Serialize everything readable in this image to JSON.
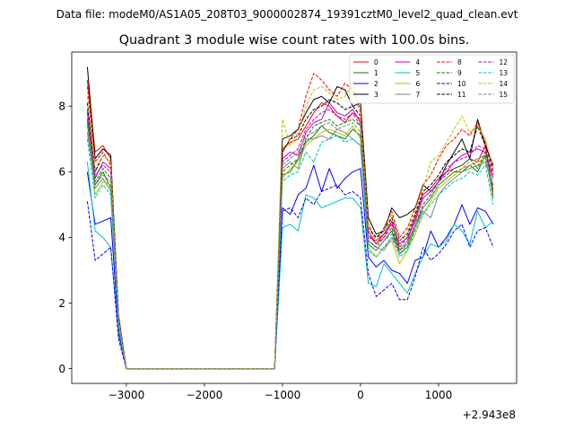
{
  "suptitle": "Data file: modeM0/AS1A05_208T03_9000002874_19391cztM0_level2_quad_clean.evt",
  "chart_data": {
    "type": "line",
    "title": "Quadrant 3 module wise count rates with 100.0s bins.",
    "xlabel": "",
    "ylabel": "",
    "offset_text": "+2.943e8",
    "xlim": [
      -3700,
      2000
    ],
    "ylim": [
      -0.45,
      9.65
    ],
    "xticks": [
      -3000,
      -2000,
      -1000,
      0,
      1000
    ],
    "xtick_labels": [
      "−3000",
      "−2000",
      "−1000",
      "0",
      "1000"
    ],
    "yticks": [
      0,
      2,
      4,
      6,
      8
    ],
    "ytick_labels": [
      "0",
      "2",
      "4",
      "6",
      "8"
    ],
    "grid": false,
    "legend_placement": "upper-right",
    "x": [
      -3500,
      -3400,
      -3300,
      -3200,
      -3100,
      -3000,
      -2900,
      -2800,
      -2700,
      -2600,
      -2500,
      -2400,
      -2300,
      -2200,
      -2100,
      -2000,
      -1900,
      -1800,
      -1700,
      -1600,
      -1500,
      -1400,
      -1300,
      -1200,
      -1100,
      -1000,
      -900,
      -800,
      -700,
      -600,
      -500,
      -400,
      -300,
      -200,
      -100,
      0,
      100,
      200,
      300,
      400,
      500,
      600,
      700,
      800,
      900,
      1000,
      1100,
      1200,
      1300,
      1400,
      1500,
      1600,
      1700
    ],
    "series": [
      {
        "name": "0",
        "color": "#ff0000",
        "dash": "solid",
        "values": [
          8.8,
          6.6,
          6.8,
          6.4,
          1.6,
          0,
          0,
          0,
          0,
          0,
          0,
          0,
          0,
          0,
          0,
          0,
          0,
          0,
          0,
          0,
          0,
          0,
          0,
          0,
          0,
          6.7,
          6.9,
          7.0,
          7.4,
          7.8,
          8.1,
          8.0,
          7.7,
          7.5,
          7.8,
          7.6,
          4.2,
          3.8,
          4.1,
          4.5,
          3.6,
          3.9,
          4.6,
          5.3,
          5.5,
          5.8,
          6.0,
          6.1,
          6.2,
          6.4,
          6.3,
          6.8,
          5.4
        ]
      },
      {
        "name": "1",
        "color": "#008000",
        "dash": "solid",
        "values": [
          7.5,
          5.6,
          6.0,
          5.5,
          1.4,
          0,
          0,
          0,
          0,
          0,
          0,
          0,
          0,
          0,
          0,
          0,
          0,
          0,
          0,
          0,
          0,
          0,
          0,
          0,
          0,
          5.9,
          6.0,
          6.4,
          6.9,
          7.1,
          7.4,
          7.2,
          7.1,
          7.0,
          7.3,
          7.1,
          3.8,
          3.6,
          3.9,
          4.2,
          3.5,
          3.7,
          4.3,
          4.9,
          5.2,
          5.6,
          5.8,
          6.0,
          6.0,
          6.2,
          6.0,
          6.5,
          5.2
        ]
      },
      {
        "name": "2",
        "color": "#0000ff",
        "dash": "solid",
        "values": [
          6.0,
          4.4,
          4.5,
          4.6,
          1.1,
          0,
          0,
          0,
          0,
          0,
          0,
          0,
          0,
          0,
          0,
          0,
          0,
          0,
          0,
          0,
          0,
          0,
          0,
          0,
          0,
          4.9,
          4.7,
          5.3,
          5.5,
          6.2,
          5.4,
          6.1,
          5.5,
          5.8,
          6.0,
          6.1,
          3.4,
          3.1,
          3.3,
          3.0,
          2.9,
          2.6,
          3.3,
          3.4,
          4.2,
          3.7,
          4.0,
          4.4,
          5.0,
          4.4,
          4.9,
          4.8,
          4.4
        ]
      },
      {
        "name": "3",
        "color": "#000000",
        "dash": "solid",
        "values": [
          9.2,
          6.4,
          6.7,
          6.5,
          1.6,
          0,
          0,
          0,
          0,
          0,
          0,
          0,
          0,
          0,
          0,
          0,
          0,
          0,
          0,
          0,
          0,
          0,
          0,
          0,
          0,
          7.0,
          7.1,
          7.3,
          7.8,
          8.2,
          8.3,
          8.1,
          8.6,
          8.5,
          8.0,
          8.1,
          4.6,
          4.1,
          4.2,
          4.9,
          4.6,
          4.7,
          4.9,
          5.6,
          5.4,
          5.7,
          6.2,
          6.6,
          7.0,
          6.4,
          7.6,
          6.8,
          6.2
        ]
      },
      {
        "name": "4",
        "color": "#bf00bf",
        "dash": "solid",
        "values": [
          7.9,
          5.8,
          6.3,
          6.1,
          1.5,
          0,
          0,
          0,
          0,
          0,
          0,
          0,
          0,
          0,
          0,
          0,
          0,
          0,
          0,
          0,
          0,
          0,
          0,
          0,
          0,
          6.4,
          6.6,
          6.5,
          7.2,
          7.5,
          7.6,
          8.1,
          7.8,
          7.7,
          7.9,
          7.5,
          4.0,
          3.9,
          4.1,
          4.4,
          3.8,
          4.0,
          4.5,
          5.2,
          5.4,
          5.7,
          6.0,
          6.3,
          6.5,
          6.6,
          6.7,
          6.6,
          5.8
        ]
      },
      {
        "name": "5",
        "color": "#00bfbf",
        "dash": "solid",
        "values": [
          6.3,
          4.2,
          4.0,
          3.7,
          1.0,
          0,
          0,
          0,
          0,
          0,
          0,
          0,
          0,
          0,
          0,
          0,
          0,
          0,
          0,
          0,
          0,
          0,
          0,
          0,
          0,
          4.3,
          4.4,
          4.2,
          5.3,
          5.2,
          4.9,
          5.0,
          5.1,
          5.2,
          5.2,
          4.9,
          2.6,
          2.5,
          3.2,
          2.9,
          2.6,
          2.3,
          2.9,
          3.4,
          3.8,
          3.7,
          3.9,
          4.4,
          4.2,
          3.8,
          4.8,
          4.3,
          4.5
        ]
      },
      {
        "name": "6",
        "color": "#bfbf00",
        "dash": "solid",
        "values": [
          7.7,
          5.3,
          5.7,
          5.6,
          1.4,
          0,
          0,
          0,
          0,
          0,
          0,
          0,
          0,
          0,
          0,
          0,
          0,
          0,
          0,
          0,
          0,
          0,
          0,
          0,
          0,
          5.8,
          6.1,
          6.3,
          6.8,
          7.0,
          7.2,
          7.3,
          7.2,
          7.1,
          7.4,
          7.0,
          3.7,
          3.4,
          3.7,
          3.9,
          3.2,
          3.6,
          4.1,
          4.7,
          5.1,
          5.5,
          5.7,
          5.9,
          6.1,
          6.2,
          6.3,
          6.4,
          5.3
        ]
      },
      {
        "name": "7",
        "color": "#808080",
        "dash": "solid",
        "values": [
          7.2,
          5.5,
          5.8,
          5.4,
          1.3,
          0,
          0,
          0,
          0,
          0,
          0,
          0,
          0,
          0,
          0,
          0,
          0,
          0,
          0,
          0,
          0,
          0,
          0,
          0,
          0,
          6.1,
          6.3,
          6.1,
          7.0,
          7.0,
          7.1,
          7.0,
          7.3,
          7.2,
          7.0,
          6.8,
          3.9,
          3.7,
          3.6,
          4.0,
          3.6,
          3.9,
          4.3,
          4.8,
          4.6,
          5.3,
          5.6,
          5.8,
          6.0,
          6.1,
          6.2,
          6.3,
          5.6
        ]
      },
      {
        "name": "8",
        "color": "#ff0000",
        "dash": "dashed",
        "values": [
          8.6,
          6.3,
          6.6,
          6.2,
          1.5,
          0,
          0,
          0,
          0,
          0,
          0,
          0,
          0,
          0,
          0,
          0,
          0,
          0,
          0,
          0,
          0,
          0,
          0,
          0,
          0,
          6.6,
          7.0,
          7.3,
          8.3,
          9.0,
          8.8,
          8.5,
          8.3,
          8.7,
          8.5,
          7.9,
          4.4,
          3.9,
          4.3,
          4.8,
          4.0,
          4.3,
          4.9,
          5.6,
          5.9,
          6.4,
          6.8,
          7.0,
          7.3,
          7.1,
          7.5,
          6.9,
          6.0
        ]
      },
      {
        "name": "9",
        "color": "#008000",
        "dash": "dashed",
        "values": [
          7.6,
          5.7,
          6.1,
          5.8,
          1.4,
          0,
          0,
          0,
          0,
          0,
          0,
          0,
          0,
          0,
          0,
          0,
          0,
          0,
          0,
          0,
          0,
          0,
          0,
          0,
          0,
          6.0,
          6.2,
          6.4,
          7.0,
          7.4,
          7.5,
          7.6,
          7.4,
          7.5,
          7.6,
          7.4,
          3.9,
          3.7,
          4.0,
          4.3,
          3.6,
          3.8,
          4.4,
          5.0,
          5.3,
          5.7,
          5.9,
          6.1,
          6.2,
          6.4,
          6.1,
          6.6,
          5.5
        ]
      },
      {
        "name": "10",
        "color": "#0000ff",
        "dash": "dashed",
        "values": [
          5.1,
          3.3,
          3.5,
          3.7,
          0.9,
          0,
          0,
          0,
          0,
          0,
          0,
          0,
          0,
          0,
          0,
          0,
          0,
          0,
          0,
          0,
          0,
          0,
          0,
          0,
          0,
          4.8,
          4.9,
          4.6,
          5.2,
          5.0,
          5.4,
          5.5,
          5.6,
          5.3,
          5.4,
          5.2,
          2.9,
          2.2,
          2.4,
          2.6,
          2.1,
          2.1,
          2.8,
          3.7,
          3.3,
          3.5,
          3.8,
          4.2,
          4.4,
          3.7,
          4.2,
          4.3,
          3.7
        ]
      },
      {
        "name": "11",
        "color": "#000000",
        "dash": "dashed",
        "values": [
          8.1,
          6.0,
          6.5,
          6.3,
          1.5,
          0,
          0,
          0,
          0,
          0,
          0,
          0,
          0,
          0,
          0,
          0,
          0,
          0,
          0,
          0,
          0,
          0,
          0,
          0,
          0,
          6.6,
          7.0,
          7.1,
          7.6,
          7.9,
          8.0,
          8.2,
          8.1,
          7.9,
          8.0,
          7.7,
          4.3,
          4.0,
          4.2,
          4.6,
          3.9,
          4.1,
          4.7,
          5.4,
          5.6,
          5.9,
          6.3,
          6.5,
          6.7,
          6.6,
          7.4,
          6.8,
          6.1
        ]
      },
      {
        "name": "12",
        "color": "#bf00bf",
        "dash": "dashed",
        "values": [
          7.8,
          5.9,
          6.2,
          6.0,
          1.5,
          0,
          0,
          0,
          0,
          0,
          0,
          0,
          0,
          0,
          0,
          0,
          0,
          0,
          0,
          0,
          0,
          0,
          0,
          0,
          0,
          6.3,
          6.5,
          6.7,
          7.3,
          7.6,
          7.8,
          7.9,
          7.7,
          7.6,
          7.8,
          7.4,
          4.1,
          3.8,
          4.0,
          4.5,
          3.7,
          4.0,
          4.6,
          5.3,
          5.5,
          5.8,
          6.1,
          6.3,
          6.4,
          6.5,
          6.8,
          6.7,
          5.9
        ]
      },
      {
        "name": "13",
        "color": "#00bfbf",
        "dash": "dashed",
        "values": [
          7.0,
          5.2,
          5.6,
          5.3,
          1.3,
          0,
          0,
          0,
          0,
          0,
          0,
          0,
          0,
          0,
          0,
          0,
          0,
          0,
          0,
          0,
          0,
          0,
          0,
          0,
          0,
          5.7,
          5.9,
          6.0,
          6.6,
          6.3,
          6.9,
          7.0,
          7.1,
          6.9,
          7.0,
          6.8,
          3.6,
          3.4,
          3.7,
          4.0,
          3.4,
          3.6,
          4.2,
          4.7,
          5.0,
          5.3,
          5.5,
          5.7,
          5.8,
          6.0,
          5.9,
          6.2,
          5.0
        ]
      },
      {
        "name": "14",
        "color": "#bfbf00",
        "dash": "dashed",
        "values": [
          8.3,
          6.1,
          6.5,
          6.3,
          1.5,
          0,
          0,
          0,
          0,
          0,
          0,
          0,
          0,
          0,
          0,
          0,
          0,
          0,
          0,
          0,
          0,
          0,
          0,
          0,
          0,
          7.6,
          6.8,
          7.2,
          8.0,
          8.5,
          8.6,
          8.4,
          8.2,
          8.3,
          8.7,
          7.7,
          4.3,
          3.9,
          4.2,
          4.7,
          3.9,
          4.2,
          4.8,
          5.5,
          6.3,
          6.5,
          6.9,
          7.3,
          7.7,
          7.2,
          7.4,
          7.0,
          6.1
        ]
      },
      {
        "name": "15",
        "color": "#808080",
        "dash": "dashed",
        "values": [
          7.4,
          5.6,
          5.9,
          5.7,
          1.4,
          0,
          0,
          0,
          0,
          0,
          0,
          0,
          0,
          0,
          0,
          0,
          0,
          0,
          0,
          0,
          0,
          0,
          0,
          0,
          0,
          6.2,
          6.4,
          6.6,
          7.1,
          7.2,
          7.4,
          7.5,
          7.3,
          7.4,
          7.5,
          7.2,
          3.8,
          3.6,
          3.9,
          4.1,
          3.5,
          3.8,
          4.4,
          4.9,
          5.2,
          5.6,
          5.8,
          6.0,
          6.1,
          6.3,
          6.4,
          6.5,
          5.3
        ]
      }
    ]
  }
}
